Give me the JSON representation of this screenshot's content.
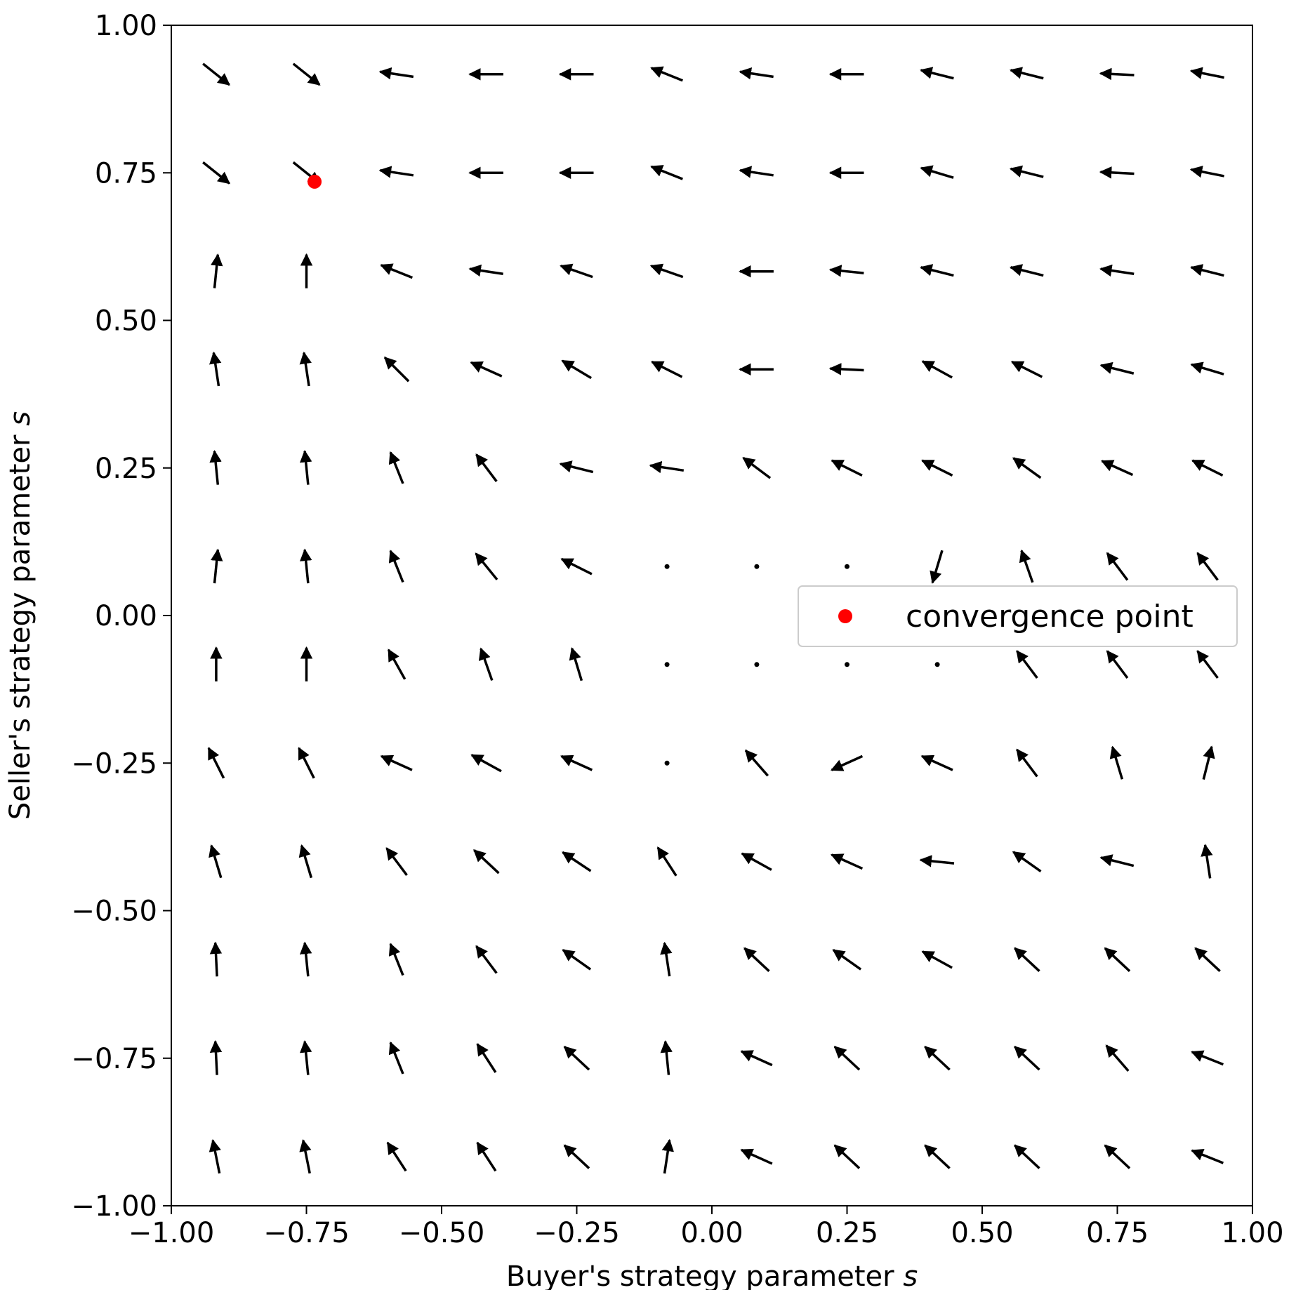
{
  "chart_data": {
    "type": "quiver",
    "xlabel": "Buyer's strategy parameter",
    "xlabel_var": "s",
    "ylabel": "Seller's strategy parameter",
    "ylabel_var": "s",
    "xlim": [
      -1.0,
      1.0
    ],
    "ylim": [
      -1.0,
      1.0
    ],
    "xticks": [
      "−1.00",
      "−0.75",
      "−0.50",
      "−0.25",
      "0.00",
      "0.25",
      "0.50",
      "0.75",
      "1.00"
    ],
    "yticks": [
      "1.00",
      "0.75",
      "0.50",
      "0.25",
      "0.00",
      "−0.25",
      "−0.50",
      "−0.75",
      "−1.00"
    ],
    "grid": false,
    "legend": {
      "placement": "center-right",
      "entries": [
        {
          "label": "convergence point",
          "color": "#ff0000",
          "marker": "circle"
        }
      ]
    },
    "x": [
      -0.917,
      -0.75,
      -0.583,
      -0.417,
      -0.25,
      -0.083,
      0.083,
      0.25,
      0.417,
      0.583,
      0.75,
      0.917
    ],
    "y": [
      0.917,
      0.75,
      0.583,
      0.417,
      0.25,
      0.083,
      -0.083,
      -0.25,
      -0.417,
      -0.583,
      -0.75,
      -0.917
    ],
    "vectors": [
      [
        [
          1,
          -0.8
        ],
        [
          1,
          -0.8
        ],
        [
          -1,
          0.15
        ],
        [
          -1,
          0
        ],
        [
          -1,
          0
        ],
        [
          -1,
          0.4
        ],
        [
          -1,
          0.15
        ],
        [
          -1,
          0
        ],
        [
          -1,
          0.25
        ],
        [
          -1,
          0.25
        ],
        [
          -1,
          0.05
        ],
        [
          -1,
          0.2
        ]
      ],
      [
        [
          1,
          -0.8
        ],
        [
          1,
          -0.8
        ],
        [
          -1,
          0.15
        ],
        [
          -1,
          0
        ],
        [
          -1,
          0
        ],
        [
          -1,
          0.4
        ],
        [
          -1,
          0.15
        ],
        [
          -1,
          0
        ],
        [
          -1,
          0.3
        ],
        [
          -1,
          0.25
        ],
        [
          -1,
          0.05
        ],
        [
          -1,
          0.2
        ]
      ],
      [
        [
          0.1,
          1
        ],
        [
          0,
          1
        ],
        [
          -1,
          0.4
        ],
        [
          -1,
          0.15
        ],
        [
          -1,
          0.35
        ],
        [
          -1,
          0.35
        ],
        [
          -1,
          0
        ],
        [
          -1,
          0.1
        ],
        [
          -1,
          0.25
        ],
        [
          -1,
          0.25
        ],
        [
          -1,
          0.15
        ],
        [
          -1,
          0.25
        ]
      ],
      [
        [
          -0.15,
          1
        ],
        [
          -0.15,
          1
        ],
        [
          -0.7,
          0.7
        ],
        [
          -1,
          0.45
        ],
        [
          -1,
          0.6
        ],
        [
          -1,
          0.5
        ],
        [
          -1,
          0
        ],
        [
          -1,
          0.05
        ],
        [
          -1,
          0.55
        ],
        [
          -1,
          0.5
        ],
        [
          -1,
          0.25
        ],
        [
          -1,
          0.3
        ]
      ],
      [
        [
          -0.1,
          1
        ],
        [
          -0.1,
          1
        ],
        [
          -0.4,
          1
        ],
        [
          -0.6,
          0.8
        ],
        [
          -1,
          0.25
        ],
        [
          -1,
          0.15
        ],
        [
          -0.8,
          0.6
        ],
        [
          -1,
          0.5
        ],
        [
          -1,
          0.5
        ],
        [
          -0.9,
          0.65
        ],
        [
          -1,
          0.45
        ],
        [
          -1,
          0.5
        ]
      ],
      [
        [
          0.1,
          1
        ],
        [
          -0.1,
          1
        ],
        [
          -0.4,
          1
        ],
        [
          -0.65,
          0.8
        ],
        [
          -1,
          0.5
        ],
        [
          0,
          0
        ],
        [
          0,
          0
        ],
        [
          0,
          0
        ],
        [
          -0.3,
          -1
        ],
        [
          -0.35,
          1
        ],
        [
          -0.6,
          0.8
        ],
        [
          -0.6,
          0.8
        ]
      ],
      [
        [
          0,
          1
        ],
        [
          0,
          1
        ],
        [
          -0.5,
          0.9
        ],
        [
          -0.35,
          1
        ],
        [
          -0.3,
          1
        ],
        [
          0,
          0
        ],
        [
          0,
          0
        ],
        [
          0,
          0
        ],
        [
          0,
          0
        ],
        [
          -0.6,
          0.8
        ],
        [
          -0.6,
          0.8
        ],
        [
          -0.6,
          0.8
        ]
      ],
      [
        [
          -0.45,
          0.9
        ],
        [
          -0.45,
          0.9
        ],
        [
          -1,
          0.45
        ],
        [
          -1,
          0.55
        ],
        [
          -1,
          0.45
        ],
        [
          0,
          0
        ],
        [
          -0.7,
          0.8
        ],
        [
          -1,
          -0.45
        ],
        [
          -1,
          0.45
        ],
        [
          -0.6,
          0.8
        ],
        [
          -0.3,
          1
        ],
        [
          0.25,
          1
        ]
      ],
      [
        [
          -0.3,
          1
        ],
        [
          -0.3,
          1
        ],
        [
          -0.6,
          0.8
        ],
        [
          -0.75,
          0.7
        ],
        [
          -0.9,
          0.6
        ],
        [
          -0.55,
          0.85
        ],
        [
          -0.9,
          0.5
        ],
        [
          -1,
          0.45
        ],
        [
          -1,
          0.1
        ],
        [
          -0.85,
          0.6
        ],
        [
          -1,
          0.25
        ],
        [
          -0.15,
          1
        ]
      ],
      [
        [
          -0.05,
          1
        ],
        [
          -0.1,
          1
        ],
        [
          -0.4,
          1
        ],
        [
          -0.6,
          0.8
        ],
        [
          -0.85,
          0.6
        ],
        [
          -0.15,
          1
        ],
        [
          -0.75,
          0.7
        ],
        [
          -0.85,
          0.6
        ],
        [
          -1,
          0.55
        ],
        [
          -0.75,
          0.7
        ],
        [
          -0.75,
          0.7
        ],
        [
          -0.75,
          0.7
        ]
      ],
      [
        [
          -0.05,
          1
        ],
        [
          -0.1,
          1
        ],
        [
          -0.4,
          1
        ],
        [
          -0.55,
          0.85
        ],
        [
          -0.75,
          0.7
        ],
        [
          -0.1,
          1
        ],
        [
          -1,
          0.45
        ],
        [
          -0.75,
          0.7
        ],
        [
          -0.75,
          0.7
        ],
        [
          -0.75,
          0.7
        ],
        [
          -0.65,
          0.75
        ],
        [
          -1,
          0.4
        ]
      ],
      [
        [
          -0.2,
          1
        ],
        [
          -0.2,
          1
        ],
        [
          -0.55,
          0.85
        ],
        [
          -0.55,
          0.85
        ],
        [
          -0.75,
          0.7
        ],
        [
          0.15,
          1
        ],
        [
          -1,
          0.45
        ],
        [
          -0.75,
          0.7
        ],
        [
          -0.75,
          0.7
        ],
        [
          -0.75,
          0.7
        ],
        [
          -0.75,
          0.7
        ],
        [
          -1,
          0.4
        ]
      ]
    ],
    "convergence_point": {
      "x": -0.735,
      "y": 0.735,
      "color": "#ff0000"
    }
  }
}
